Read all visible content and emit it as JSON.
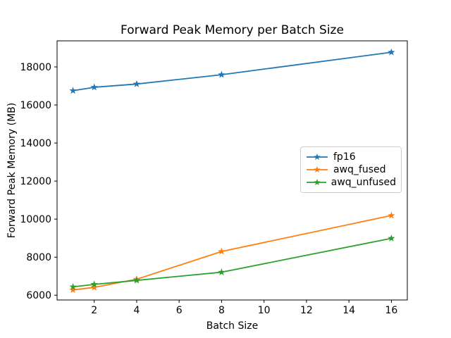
{
  "figure": {
    "background": "#ffffff",
    "frame_color": "#000000"
  },
  "chart_data": {
    "type": "line",
    "title": "Forward Peak Memory per Batch Size",
    "xlabel": "Batch Size",
    "ylabel": "Forward Peak Memory (MB)",
    "x": [
      1,
      2,
      4,
      8,
      16
    ],
    "series": [
      {
        "name": "fp16",
        "color": "#1f77b4",
        "marker": "star",
        "values": [
          16750,
          16930,
          17100,
          17590,
          18770
        ]
      },
      {
        "name": "awq_fused",
        "color": "#ff7f0e",
        "marker": "star",
        "values": [
          6280,
          6410,
          6840,
          8300,
          10190
        ]
      },
      {
        "name": "awq_unfused",
        "color": "#2ca02c",
        "marker": "star",
        "values": [
          6440,
          6570,
          6780,
          7210,
          8990
        ]
      }
    ],
    "xticks": [
      2,
      4,
      6,
      8,
      10,
      12,
      14,
      16
    ],
    "yticks": [
      6000,
      8000,
      10000,
      12000,
      14000,
      16000,
      18000
    ],
    "xlim": [
      0.25,
      16.75
    ],
    "ylim": [
      5750,
      19370
    ],
    "grid": false,
    "legend_position": "center right"
  }
}
